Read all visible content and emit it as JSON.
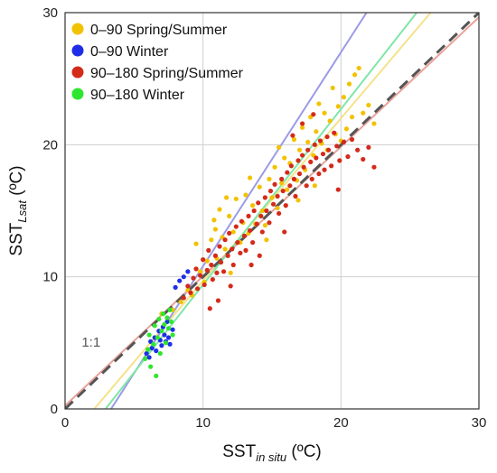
{
  "chart_data": {
    "type": "scatter",
    "xlabel": {
      "main": "SST",
      "sub": "in situ",
      "unit": " (ºC)"
    },
    "ylabel": {
      "main": "SST",
      "sub": "Lsat",
      "unit": " (ºC)"
    },
    "xlim": [
      0,
      30
    ],
    "ylim": [
      0,
      30
    ],
    "xticks": [
      0,
      10,
      20,
      30
    ],
    "yticks": [
      0,
      10,
      20,
      30
    ],
    "grid": true,
    "legend_position": "top-left",
    "identity_label": "1:1",
    "identity_color": "#555555",
    "series": [
      {
        "name": "0–90 Spring/Summer",
        "color": "#f2c200",
        "fit": {
          "slope": 1.23,
          "intercept": -2.6,
          "color": "#f5e28a"
        },
        "points": [
          [
            7.0,
            7.2
          ],
          [
            7.8,
            7.5
          ],
          [
            8.4,
            8.1
          ],
          [
            8.9,
            9.0
          ],
          [
            9.2,
            8.6
          ],
          [
            9.8,
            10.4
          ],
          [
            10.1,
            9.6
          ],
          [
            10.3,
            11.2
          ],
          [
            10.6,
            12.8
          ],
          [
            10.8,
            14.3
          ],
          [
            11.0,
            11.4
          ],
          [
            11.2,
            15.1
          ],
          [
            11.4,
            13.0
          ],
          [
            11.6,
            12.1
          ],
          [
            11.9,
            14.6
          ],
          [
            12.2,
            13.4
          ],
          [
            12.4,
            15.9
          ],
          [
            12.7,
            12.6
          ],
          [
            12.9,
            14.1
          ],
          [
            13.1,
            16.2
          ],
          [
            13.3,
            13.3
          ],
          [
            13.6,
            15.4
          ],
          [
            13.8,
            14.0
          ],
          [
            14.1,
            16.8
          ],
          [
            14.3,
            15.0
          ],
          [
            14.5,
            13.9
          ],
          [
            14.8,
            17.4
          ],
          [
            15.0,
            16.0
          ],
          [
            15.2,
            18.3
          ],
          [
            15.4,
            15.2
          ],
          [
            15.7,
            17.1
          ],
          [
            15.9,
            19.0
          ],
          [
            16.1,
            16.6
          ],
          [
            16.3,
            18.6
          ],
          [
            16.6,
            20.4
          ],
          [
            16.8,
            17.3
          ],
          [
            17.0,
            19.6
          ],
          [
            17.2,
            21.3
          ],
          [
            17.4,
            18.1
          ],
          [
            17.6,
            20.2
          ],
          [
            17.8,
            22.1
          ],
          [
            18.0,
            19.2
          ],
          [
            18.2,
            21.0
          ],
          [
            18.4,
            23.1
          ],
          [
            18.6,
            20.1
          ],
          [
            18.8,
            22.4
          ],
          [
            19.0,
            19.6
          ],
          [
            19.2,
            21.8
          ],
          [
            19.4,
            24.3
          ],
          [
            19.6,
            20.8
          ],
          [
            19.8,
            22.9
          ],
          [
            20.0,
            20.3
          ],
          [
            20.2,
            23.6
          ],
          [
            20.4,
            21.2
          ],
          [
            20.6,
            24.6
          ],
          [
            20.8,
            22.1
          ],
          [
            21.0,
            25.3
          ],
          [
            21.3,
            25.8
          ],
          [
            21.6,
            22.4
          ],
          [
            22.0,
            23.0
          ],
          [
            22.4,
            21.6
          ],
          [
            18.1,
            16.9
          ],
          [
            16.9,
            15.8
          ],
          [
            14.6,
            12.8
          ],
          [
            12.0,
            10.3
          ],
          [
            9.5,
            12.5
          ],
          [
            10.9,
            13.6
          ],
          [
            13.4,
            17.5
          ],
          [
            15.5,
            19.8
          ],
          [
            11.7,
            16.0
          ]
        ]
      },
      {
        "name": "0–90 Winter",
        "color": "#1f2ee6",
        "fit": {
          "slope": 1.62,
          "intercept": -5.4,
          "color": "#9b9be6"
        },
        "points": [
          [
            5.9,
            4.2
          ],
          [
            6.1,
            3.9
          ],
          [
            6.2,
            5.1
          ],
          [
            6.3,
            4.6
          ],
          [
            6.5,
            5.4
          ],
          [
            6.6,
            4.4
          ],
          [
            6.8,
            5.9
          ],
          [
            6.9,
            5.2
          ],
          [
            7.0,
            4.8
          ],
          [
            7.1,
            6.2
          ],
          [
            7.2,
            5.6
          ],
          [
            7.3,
            5.1
          ],
          [
            7.4,
            6.6
          ],
          [
            7.6,
            4.9
          ],
          [
            7.8,
            6.0
          ],
          [
            8.0,
            9.2
          ],
          [
            8.3,
            9.7
          ],
          [
            8.6,
            10.0
          ],
          [
            8.9,
            10.4
          ],
          [
            7.5,
            5.4
          ]
        ]
      },
      {
        "name": "90–180 Spring/Summer",
        "color": "#d42a1a",
        "fit": {
          "slope": 0.98,
          "intercept": 0.25,
          "color": "#e8a39a"
        },
        "points": [
          [
            8.6,
            8.4
          ],
          [
            8.9,
            9.3
          ],
          [
            9.1,
            8.8
          ],
          [
            9.3,
            9.9
          ],
          [
            9.5,
            10.6
          ],
          [
            9.6,
            9.1
          ],
          [
            9.8,
            10.1
          ],
          [
            10.0,
            11.3
          ],
          [
            10.1,
            9.4
          ],
          [
            10.3,
            10.5
          ],
          [
            10.4,
            12.0
          ],
          [
            10.6,
            10.9
          ],
          [
            10.7,
            9.8
          ],
          [
            10.9,
            11.6
          ],
          [
            11.0,
            10.3
          ],
          [
            11.2,
            12.3
          ],
          [
            11.3,
            11.1
          ],
          [
            11.5,
            10.4
          ],
          [
            11.6,
            12.8
          ],
          [
            11.8,
            11.6
          ],
          [
            11.9,
            13.3
          ],
          [
            12.1,
            12.1
          ],
          [
            12.2,
            10.9
          ],
          [
            12.4,
            13.8
          ],
          [
            12.5,
            12.6
          ],
          [
            12.7,
            11.8
          ],
          [
            12.8,
            14.2
          ],
          [
            13.0,
            13.1
          ],
          [
            13.1,
            12.0
          ],
          [
            13.3,
            14.6
          ],
          [
            13.4,
            13.5
          ],
          [
            13.6,
            12.6
          ],
          [
            13.7,
            15.0
          ],
          [
            13.9,
            14.0
          ],
          [
            14.0,
            15.6
          ],
          [
            14.2,
            14.6
          ],
          [
            14.3,
            13.4
          ],
          [
            14.5,
            16.0
          ],
          [
            14.6,
            15.0
          ],
          [
            14.8,
            14.1
          ],
          [
            14.9,
            16.5
          ],
          [
            15.1,
            15.5
          ],
          [
            15.2,
            17.0
          ],
          [
            15.4,
            16.1
          ],
          [
            15.5,
            14.8
          ],
          [
            15.7,
            17.4
          ],
          [
            15.8,
            16.5
          ],
          [
            16.0,
            15.4
          ],
          [
            16.1,
            17.9
          ],
          [
            16.3,
            16.9
          ],
          [
            16.4,
            18.4
          ],
          [
            16.6,
            17.4
          ],
          [
            16.7,
            16.1
          ],
          [
            16.9,
            18.8
          ],
          [
            17.0,
            17.8
          ],
          [
            17.2,
            19.2
          ],
          [
            17.3,
            18.3
          ],
          [
            17.5,
            16.9
          ],
          [
            17.6,
            19.6
          ],
          [
            17.8,
            18.7
          ],
          [
            17.9,
            17.4
          ],
          [
            18.1,
            20.0
          ],
          [
            18.2,
            19.0
          ],
          [
            18.4,
            17.8
          ],
          [
            18.5,
            20.3
          ],
          [
            18.7,
            19.3
          ],
          [
            18.8,
            18.1
          ],
          [
            19.0,
            20.6
          ],
          [
            19.1,
            19.6
          ],
          [
            19.3,
            18.4
          ],
          [
            19.5,
            20.9
          ],
          [
            19.7,
            19.9
          ],
          [
            19.9,
            18.8
          ],
          [
            20.2,
            20.2
          ],
          [
            20.5,
            19.1
          ],
          [
            20.8,
            20.4
          ],
          [
            21.2,
            19.6
          ],
          [
            21.6,
            18.9
          ],
          [
            22.0,
            19.8
          ],
          [
            22.4,
            18.3
          ],
          [
            17.2,
            21.6
          ],
          [
            16.5,
            20.7
          ],
          [
            18.0,
            22.3
          ],
          [
            14.1,
            11.6
          ],
          [
            12.0,
            9.3
          ],
          [
            10.5,
            7.6
          ],
          [
            11.1,
            8.2
          ],
          [
            13.5,
            10.9
          ],
          [
            15.9,
            13.4
          ],
          [
            19.8,
            16.6
          ]
        ]
      },
      {
        "name": "90–180 Winter",
        "color": "#2ee62e",
        "fit": {
          "slope": 1.33,
          "intercept": -3.9,
          "color": "#7fe6a8"
        },
        "points": [
          [
            5.8,
            3.8
          ],
          [
            6.0,
            4.5
          ],
          [
            6.1,
            5.6
          ],
          [
            6.2,
            3.2
          ],
          [
            6.4,
            4.9
          ],
          [
            6.5,
            6.3
          ],
          [
            6.6,
            2.5
          ],
          [
            6.7,
            5.4
          ],
          [
            6.8,
            6.8
          ],
          [
            6.9,
            4.2
          ],
          [
            7.0,
            5.9
          ],
          [
            7.1,
            7.2
          ],
          [
            7.2,
            6.4
          ],
          [
            7.3,
            5.0
          ],
          [
            7.4,
            6.9
          ],
          [
            7.5,
            6.1
          ],
          [
            7.6,
            7.5
          ],
          [
            7.7,
            6.6
          ],
          [
            7.8,
            5.6
          ]
        ]
      }
    ]
  }
}
